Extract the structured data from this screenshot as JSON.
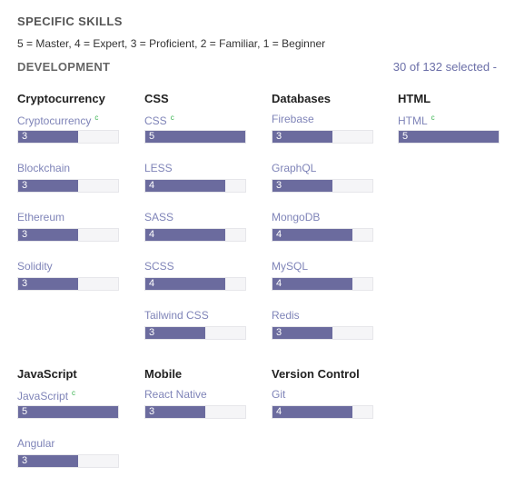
{
  "header": {
    "title": "SPECIFIC SKILLS",
    "scale_text": "5 = Master, 4 = Expert, 3 = Proficient, 2 = Familiar, 1 = Beginner"
  },
  "section": {
    "title": "DEVELOPMENT",
    "selected_text": "30 of 132 selected -"
  },
  "colors": {
    "bar_fill": "#6b6b9e",
    "bar_track": "#f5f5f7",
    "skill_link": "#7f84b8",
    "badge": "#37b24d"
  },
  "scale_max": 5,
  "categories": [
    {
      "name": "Cryptocurrency",
      "skills": [
        {
          "name": "Cryptocurrency",
          "badge": "c",
          "level": 3,
          "level_label": "3"
        },
        {
          "name": "Blockchain",
          "level": 3,
          "level_label": "3"
        },
        {
          "name": "Ethereum",
          "level": 3,
          "level_label": "3"
        },
        {
          "name": "Solidity",
          "level": 3,
          "level_label": "3"
        }
      ]
    },
    {
      "name": "CSS",
      "skills": [
        {
          "name": "CSS",
          "badge": "c",
          "level": 5,
          "level_label": "5"
        },
        {
          "name": "LESS",
          "level": 4,
          "level_label": "4"
        },
        {
          "name": "SASS",
          "level": 4,
          "level_label": "4"
        },
        {
          "name": "SCSS",
          "level": 4,
          "level_label": "4"
        },
        {
          "name": "Tailwind CSS",
          "level": 3,
          "level_label": "3"
        }
      ]
    },
    {
      "name": "Databases",
      "skills": [
        {
          "name": "Firebase",
          "level": 3,
          "level_label": "3"
        },
        {
          "name": "GraphQL",
          "level": 3,
          "level_label": "3"
        },
        {
          "name": "MongoDB",
          "level": 4,
          "level_label": "4"
        },
        {
          "name": "MySQL",
          "level": 4,
          "level_label": "4"
        },
        {
          "name": "Redis",
          "level": 3,
          "level_label": "3"
        }
      ]
    },
    {
      "name": "HTML",
      "skills": [
        {
          "name": "HTML",
          "badge": "c",
          "level": 5,
          "level_label": "5"
        }
      ]
    },
    {
      "name": "JavaScript",
      "skills": [
        {
          "name": "JavaScript",
          "badge": "c",
          "level": 5,
          "level_label": "5"
        },
        {
          "name": "Angular",
          "level": 3,
          "level_label": "3"
        }
      ]
    },
    {
      "name": "Mobile",
      "skills": [
        {
          "name": "React Native",
          "level": 3,
          "level_label": "3"
        }
      ]
    },
    {
      "name": "Version Control",
      "skills": [
        {
          "name": "Git",
          "level": 4,
          "level_label": "4"
        }
      ]
    }
  ]
}
